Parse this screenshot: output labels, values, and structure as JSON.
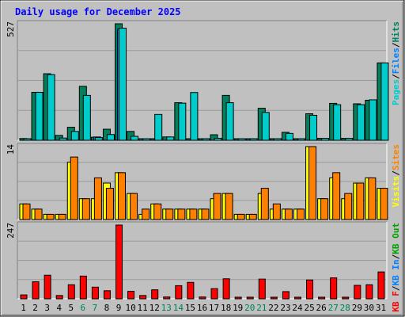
{
  "chart_data": [
    {
      "type": "bar",
      "title": "Daily usage for December 2025",
      "panel": "top",
      "ymax_label": "527",
      "ylim": [
        0,
        527
      ],
      "legend": [
        "Pages",
        "/",
        "Files",
        "/",
        "Hits"
      ],
      "legend_colors": [
        "#00CCCC",
        "#000000",
        "#0080FF",
        "#000000",
        "#00805C"
      ],
      "categories": [
        "1",
        "2",
        "3",
        "4",
        "5",
        "6",
        "7",
        "8",
        "9",
        "10",
        "11",
        "12",
        "13",
        "14",
        "15",
        "16",
        "17",
        "18",
        "19",
        "20",
        "21",
        "22",
        "23",
        "24",
        "25",
        "26",
        "27",
        "28",
        "29",
        "30",
        "31"
      ],
      "weekend_days": [
        "6",
        "7",
        "13",
        "14",
        "20",
        "21",
        "27",
        "28"
      ],
      "series": [
        {
          "name": "Hits",
          "color": "#00805C",
          "values": [
            8,
            217,
            301,
            22,
            59,
            244,
            14,
            50,
            527,
            40,
            5,
            5,
            15,
            170,
            5,
            5,
            25,
            203,
            5,
            5,
            145,
            5,
            36,
            5,
            120,
            9,
            167,
            9,
            165,
            181,
            350
          ]
        },
        {
          "name": "Files",
          "color": "#0080FF",
          "values": [
            0,
            0,
            0,
            0,
            0,
            0,
            15,
            0,
            503,
            0,
            0,
            0,
            0,
            0,
            0,
            0,
            0,
            0,
            0,
            0,
            0,
            0,
            0,
            0,
            0,
            0,
            0,
            0,
            0,
            0,
            0
          ]
        },
        {
          "name": "Pages",
          "color": "#00CCCC",
          "values": [
            6,
            217,
            297,
            10,
            40,
            203,
            12,
            26,
            507,
            18,
            5,
            117,
            15,
            168,
            216,
            5,
            9,
            170,
            5,
            5,
            126,
            5,
            31,
            5,
            113,
            9,
            161,
            9,
            161,
            183,
            350
          ]
        }
      ]
    },
    {
      "type": "bar",
      "panel": "middle",
      "ymax_label": "14",
      "ylim": [
        0,
        14
      ],
      "legend": [
        "Visits",
        "/",
        "Sites"
      ],
      "legend_colors": [
        "#FFFF00",
        "#000000",
        "#FF8000"
      ],
      "series": [
        {
          "name": "Visits",
          "color": "#FFFF00",
          "values": [
            3,
            2,
            1,
            1,
            11,
            4,
            4,
            7,
            9,
            5,
            1,
            3,
            2,
            2,
            2,
            2,
            4,
            5,
            1,
            1,
            5,
            2,
            2,
            2,
            14,
            4,
            8,
            4,
            7,
            8,
            6
          ]
        },
        {
          "name": "Sites",
          "color": "#FF8000",
          "values": [
            3,
            2,
            1,
            1,
            12,
            4,
            8,
            6,
            9,
            5,
            2,
            3,
            2,
            2,
            2,
            2,
            5,
            5,
            1,
            1,
            6,
            3,
            2,
            2,
            14,
            4,
            9,
            5,
            7,
            8,
            6
          ]
        }
      ]
    },
    {
      "type": "bar",
      "panel": "bottom",
      "ymax_label": "247",
      "ylim": [
        0,
        247
      ],
      "legend": [
        "KB F",
        "/",
        "KB In",
        "/",
        "KB Out"
      ],
      "legend_colors": [
        "#FF0000",
        "#000000",
        "#0080FF",
        "#000000",
        "#00A000"
      ],
      "series": [
        {
          "name": "KB F",
          "color": "#FF0000",
          "values": [
            13,
            57,
            79,
            11,
            47,
            76,
            39,
            27,
            247,
            25,
            11,
            30,
            6,
            44,
            55,
            6,
            34,
            67,
            3,
            3,
            66,
            3,
            24,
            3,
            63,
            3,
            70,
            3,
            45,
            47,
            90
          ]
        }
      ]
    }
  ]
}
